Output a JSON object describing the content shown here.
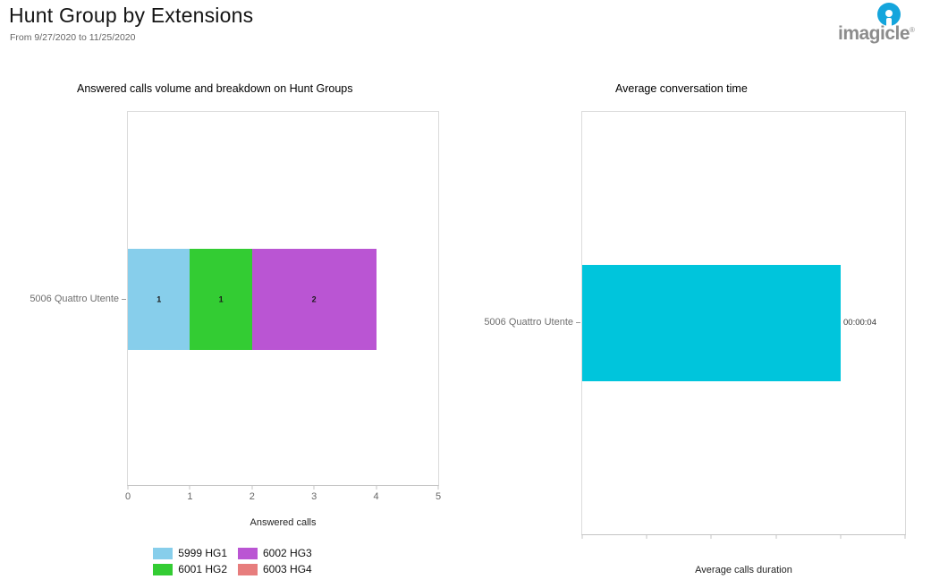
{
  "page": {
    "title": "Hunt Group by Extensions",
    "subtitle": "From 9/27/2020 to 11/25/2020"
  },
  "logo": {
    "text": "imagicle",
    "trademark": "®",
    "brand_blue": "#14A5DC",
    "text_color": "#8C8C8C"
  },
  "chart_data": [
    {
      "type": "bar",
      "orientation": "horizontal",
      "stacked": true,
      "title": "Answered calls volume and breakdown on Hunt Groups",
      "categories": [
        "5006 Quattro Utente"
      ],
      "series": [
        {
          "name": "5999 HG1",
          "values": [
            1
          ],
          "color": "#87CEEB"
        },
        {
          "name": "6001 HG2",
          "values": [
            1
          ],
          "color": "#33CC33"
        },
        {
          "name": "6002 HG3",
          "values": [
            2
          ],
          "color": "#BA55D3"
        },
        {
          "name": "6003 HG4",
          "values": [
            0
          ],
          "color": "#E77D7D"
        }
      ],
      "xlabel": "Answered calls",
      "xlim": [
        0,
        5
      ],
      "x_ticks": [
        "0",
        "1",
        "2",
        "3",
        "4",
        "5"
      ],
      "grid": false,
      "legend_position": "bottom"
    },
    {
      "type": "bar",
      "orientation": "horizontal",
      "stacked": false,
      "title": "Average conversation time",
      "categories": [
        "5006 Quattro Utente"
      ],
      "series": [
        {
          "name": "Average calls duration",
          "values": [
            4
          ],
          "color": "#00C5DC"
        }
      ],
      "value_labels": [
        "00:00:04"
      ],
      "xlabel": "Average calls duration",
      "xlim": [
        0,
        5
      ],
      "x_tick_count": 6,
      "x_ticks_labeled": false,
      "grid": false,
      "legend_position": "none"
    }
  ]
}
